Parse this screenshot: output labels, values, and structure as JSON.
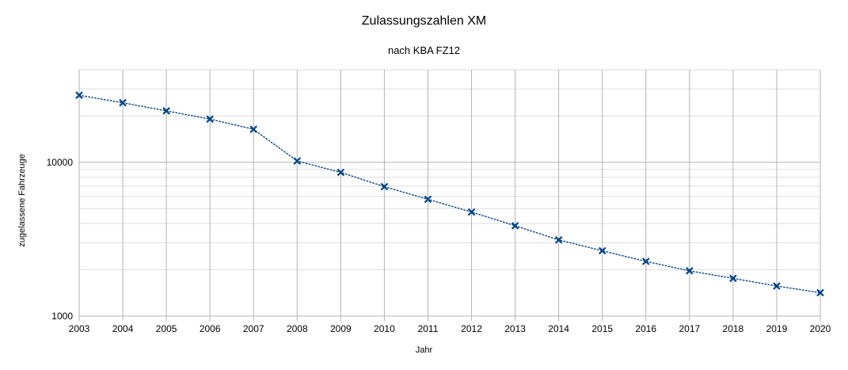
{
  "chart_data": {
    "type": "line",
    "title": "Zulassungszahlen XM",
    "subtitle": "nach KBA FZ12",
    "xlabel": "Jahr",
    "ylabel": "zugelassene Fahrzeuge",
    "yscale": "log",
    "ylim": [
      1000,
      40000
    ],
    "yticks": [
      1000,
      10000
    ],
    "ytick_labels": [
      "1000",
      "10000"
    ],
    "grid": true,
    "legend": "none",
    "categories": [
      "2003",
      "2004",
      "2005",
      "2006",
      "2007",
      "2008",
      "2009",
      "2010",
      "2011",
      "2012",
      "2013",
      "2014",
      "2015",
      "2016",
      "2017",
      "2018",
      "2019",
      "2020"
    ],
    "series": [
      {
        "color": "#004586",
        "values": [
          27300,
          24400,
          21600,
          19100,
          16400,
          10200,
          8600,
          6950,
          5750,
          4750,
          3870,
          3130,
          2660,
          2270,
          1970,
          1760,
          1570,
          1420
        ]
      }
    ]
  }
}
